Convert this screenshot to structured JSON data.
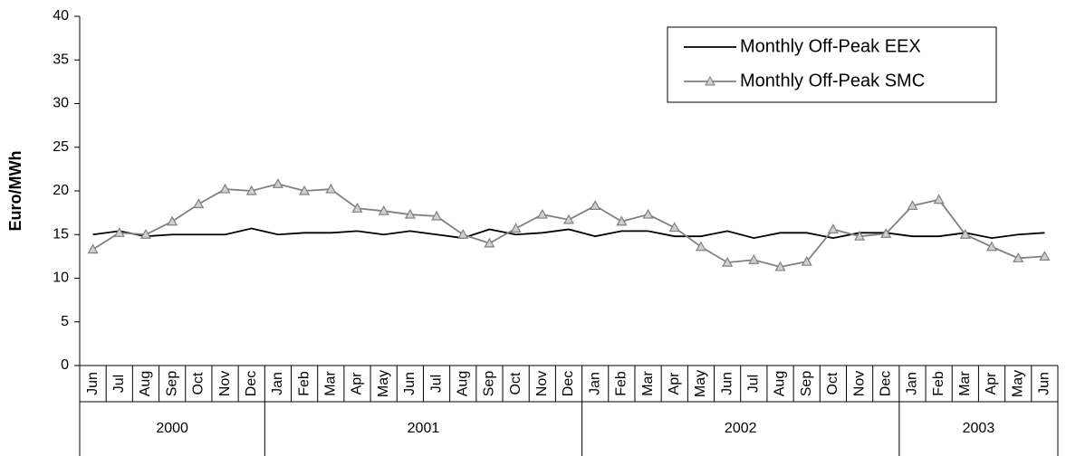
{
  "chart_data": {
    "type": "line",
    "y_label": "Euro/MWh",
    "categories": [
      "Jun",
      "Jul",
      "Aug",
      "Sep",
      "Oct",
      "Nov",
      "Dec",
      "Jan",
      "Feb",
      "Mar",
      "Apr",
      "May",
      "Jun",
      "Jul",
      "Aug",
      "Sep",
      "Oct",
      "Nov",
      "Dec",
      "Jan",
      "Feb",
      "Mar",
      "Apr",
      "May",
      "Jun",
      "Jul",
      "Aug",
      "Sep",
      "Oct",
      "Nov",
      "Dec",
      "Jan",
      "Feb",
      "Mar",
      "Apr",
      "May",
      "Jun"
    ],
    "years": [
      "2000",
      "2000",
      "2000",
      "2000",
      "2000",
      "2000",
      "2000",
      "2001",
      "2001",
      "2001",
      "2001",
      "2001",
      "2001",
      "2001",
      "2001",
      "2001",
      "2001",
      "2001",
      "2001",
      "2002",
      "2002",
      "2002",
      "2002",
      "2002",
      "2002",
      "2002",
      "2002",
      "2002",
      "2002",
      "2002",
      "2002",
      "2003",
      "2003",
      "2003",
      "2003",
      "2003",
      "2003"
    ],
    "series": [
      {
        "name": "Monthly Off-Peak EEX",
        "color": "#000000",
        "marker": "none",
        "values": [
          15.0,
          15.4,
          14.8,
          15.0,
          15.0,
          15.0,
          15.7,
          15.0,
          15.2,
          15.2,
          15.4,
          15.0,
          15.4,
          15.0,
          14.6,
          15.6,
          15.0,
          15.2,
          15.6,
          14.8,
          15.4,
          15.4,
          14.8,
          14.8,
          15.4,
          14.6,
          15.2,
          15.2,
          14.6,
          15.2,
          15.2,
          14.8,
          14.8,
          15.2,
          14.6,
          15.0,
          15.2
        ]
      },
      {
        "name": "Monthly Off-Peak SMC",
        "color": "#808080",
        "marker": "triangle",
        "values": [
          13.3,
          15.2,
          15.0,
          16.5,
          18.5,
          20.2,
          20.0,
          20.8,
          20.0,
          20.2,
          18.0,
          17.7,
          17.3,
          17.1,
          15.0,
          14.0,
          15.7,
          17.3,
          16.7,
          18.3,
          16.5,
          17.3,
          15.8,
          13.6,
          11.8,
          12.1,
          11.3,
          11.9,
          15.6,
          14.8,
          15.1,
          18.3,
          19.0,
          15.0,
          13.6,
          12.3,
          12.5
        ]
      }
    ],
    "ylim": [
      0,
      40
    ],
    "yticks": [
      0,
      5,
      10,
      15,
      20,
      25,
      30,
      35,
      40
    ],
    "grid": false,
    "legend": "upper-right"
  }
}
